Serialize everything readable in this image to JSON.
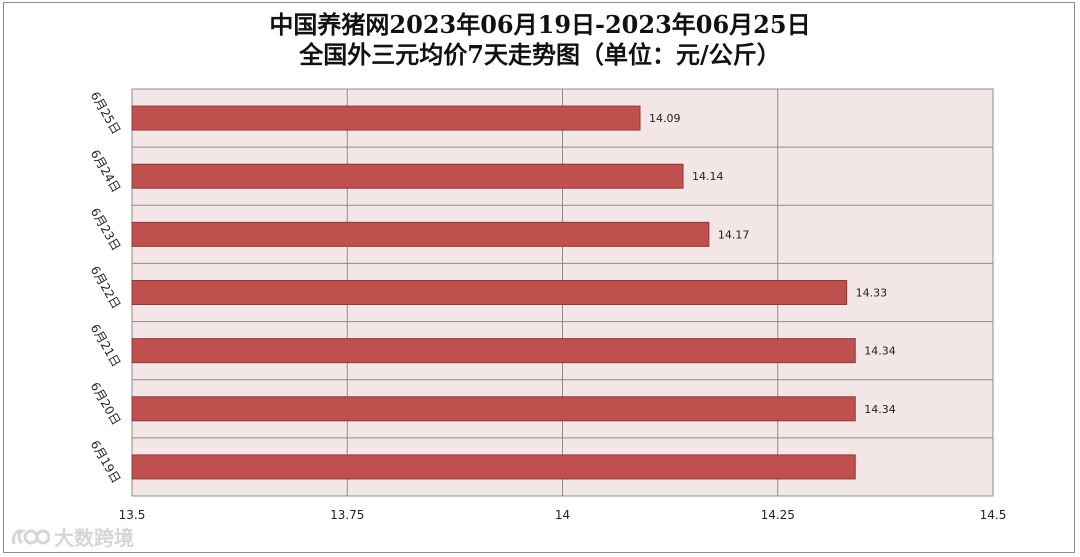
{
  "title_line1": "中国养猪网2023年06月19日-2023年06月25日",
  "title_line2": "全国外三元均价7天走势图（单位：元/公斤）",
  "watermark": "大数跨境",
  "colors": {
    "bar": "#c0504d",
    "bar_border": "#8e3a38",
    "plot_bg": "#f3e6e6",
    "grid": "#8c8c8c"
  },
  "chart_data": {
    "type": "bar",
    "orientation": "horizontal",
    "categories": [
      "6月25日",
      "6月24日",
      "6月23日",
      "6月22日",
      "6月21日",
      "6月20日",
      "6月19日"
    ],
    "values": [
      14.09,
      14.14,
      14.17,
      14.33,
      14.34,
      14.34,
      14.34
    ],
    "data_labels": [
      "14.09",
      "14.14",
      "14.17",
      "14.33",
      "14.34",
      "14.34",
      ""
    ],
    "xlim": [
      13.5,
      14.5
    ],
    "xticks": [
      13.5,
      13.75,
      14,
      14.25,
      14.5
    ],
    "xtick_labels": [
      "13.5",
      "13.75",
      "14",
      "14.25",
      "14.5"
    ],
    "grid": true,
    "legend": false
  }
}
